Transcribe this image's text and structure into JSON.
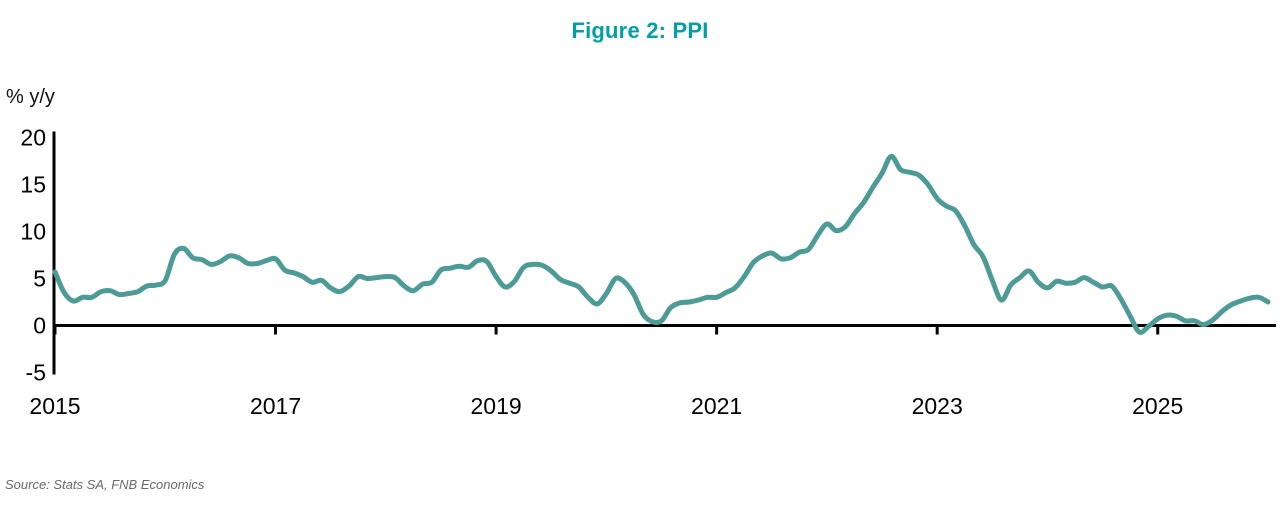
{
  "title": "Figure 2: PPI",
  "y_axis_unit_label": "% y/y",
  "source_note": "Source: Stats SA, FNB Economics",
  "colors": {
    "title_teal": "#00A0A8",
    "line_teal": "#4C9B97",
    "axis_black": "#000000",
    "source_gray": "#6A6A6A"
  },
  "chart_data": {
    "type": "line",
    "title": "Figure 2: PPI",
    "ylabel": "% y/y",
    "series_name": "PPI % y/y",
    "frequency": "monthly",
    "x_start": "2015-01",
    "x_end": "2026-01",
    "x_tick_labels": [
      "2015",
      "2017",
      "2019",
      "2021",
      "2023",
      "2025"
    ],
    "y_tick_labels": [
      "20",
      "15",
      "10",
      "5",
      "0",
      "-5"
    ],
    "ylim": [
      -5,
      20
    ],
    "grid": false,
    "legend": false,
    "values": [
      5.7,
      3.5,
      2.6,
      3.0,
      3.0,
      3.6,
      3.7,
      3.3,
      3.4,
      3.6,
      4.2,
      4.3,
      4.8,
      7.6,
      8.2,
      7.2,
      7.0,
      6.5,
      6.8,
      7.4,
      7.2,
      6.6,
      6.6,
      6.9,
      7.1,
      5.9,
      5.6,
      5.2,
      4.6,
      4.8,
      4.0,
      3.6,
      4.2,
      5.2,
      5.0,
      5.1,
      5.2,
      5.1,
      4.2,
      3.7,
      4.4,
      4.6,
      5.9,
      6.1,
      6.3,
      6.2,
      6.9,
      6.8,
      5.2,
      4.1,
      4.7,
      6.2,
      6.5,
      6.4,
      5.8,
      4.9,
      4.5,
      4.1,
      3.0,
      2.3,
      3.4,
      5.0,
      4.6,
      3.3,
      1.2,
      0.4,
      0.5,
      1.9,
      2.4,
      2.5,
      2.7,
      3.0,
      3.0,
      3.5,
      4.0,
      5.2,
      6.7,
      7.4,
      7.7,
      7.1,
      7.2,
      7.8,
      8.1,
      9.6,
      10.8,
      10.1,
      10.5,
      11.9,
      13.1,
      14.7,
      16.2,
      18.0,
      16.6,
      16.3,
      16.0,
      15.0,
      13.5,
      12.7,
      12.2,
      10.6,
      8.6,
      7.3,
      4.8,
      2.7,
      4.3,
      5.1,
      5.8,
      4.6,
      4.0,
      4.7,
      4.5,
      4.6,
      5.1,
      4.6,
      4.1,
      4.2,
      2.8,
      1.0,
      -0.7,
      -0.1,
      0.7,
      1.1,
      1.0,
      0.5,
      0.5,
      0.1,
      0.6,
      1.5,
      2.2,
      2.6,
      2.9,
      3.0,
      2.5
    ]
  }
}
